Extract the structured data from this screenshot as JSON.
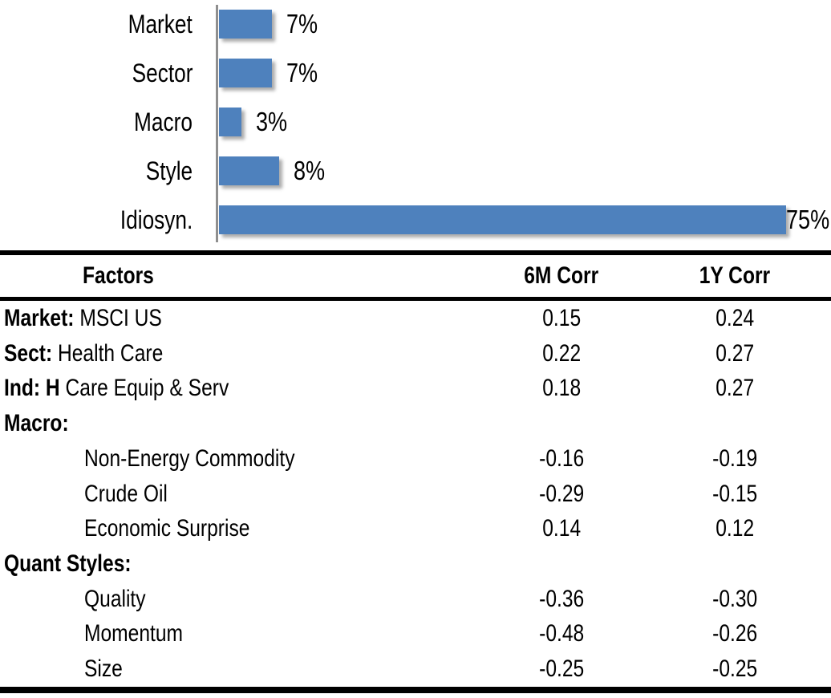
{
  "colors": {
    "bar_blue": "#4e81bd",
    "axis_gray": "#8f8f8f",
    "rule_black": "#000000",
    "text": "#000000"
  },
  "chart_data": {
    "type": "bar",
    "orientation": "horizontal",
    "title": "",
    "xlabel": "",
    "ylabel": "",
    "categories": [
      "Market",
      "Sector",
      "Macro",
      "Style",
      "Idiosyn."
    ],
    "values": [
      7,
      7,
      3,
      8,
      75
    ],
    "value_labels": [
      "7%",
      "7%",
      "3%",
      "8%",
      "75%"
    ],
    "value_unit": "percent",
    "xlim": [
      0,
      80
    ],
    "grid": false,
    "legend": false,
    "data_label_position": "outside-end-clamped"
  },
  "table": {
    "headers": [
      "Factors",
      "6M Corr",
      "1Y Corr"
    ],
    "rows": [
      {
        "prefix": "Market:",
        "rest": "MSCI US",
        "indent": false,
        "six_m": "0.15",
        "one_y": "0.24"
      },
      {
        "prefix": "Sect:",
        "rest": "Health Care",
        "indent": false,
        "six_m": "0.22",
        "one_y": "0.27"
      },
      {
        "prefix": "Ind: H",
        "rest": "Care Equip & Serv",
        "indent": false,
        "six_m": "0.18",
        "one_y": "0.27"
      },
      {
        "prefix": "Macro:",
        "rest": "",
        "indent": false,
        "six_m": "",
        "one_y": ""
      },
      {
        "prefix": "",
        "rest": "Non-Energy Commodity",
        "indent": true,
        "six_m": "-0.16",
        "one_y": "-0.19"
      },
      {
        "prefix": "",
        "rest": "Crude Oil",
        "indent": true,
        "six_m": "-0.29",
        "one_y": "-0.15"
      },
      {
        "prefix": "",
        "rest": "Economic Surprise",
        "indent": true,
        "six_m": "0.14",
        "one_y": "0.12"
      },
      {
        "prefix": "Quant Styles:",
        "rest": "",
        "indent": false,
        "six_m": "",
        "one_y": ""
      },
      {
        "prefix": "",
        "rest": "Quality",
        "indent": true,
        "six_m": "-0.36",
        "one_y": "-0.30"
      },
      {
        "prefix": "",
        "rest": "Momentum",
        "indent": true,
        "six_m": "-0.48",
        "one_y": "-0.26"
      },
      {
        "prefix": "",
        "rest": "Size",
        "indent": true,
        "six_m": "-0.25",
        "one_y": "-0.25"
      }
    ]
  }
}
